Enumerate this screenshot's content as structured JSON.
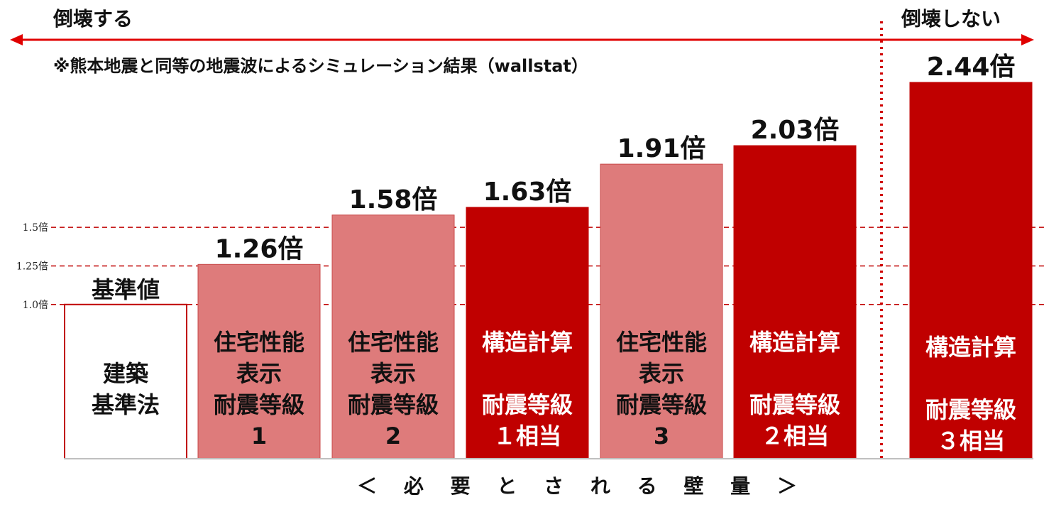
{
  "chart_data": {
    "type": "bar",
    "header_left": "倒壊する",
    "header_right": "倒壊しない",
    "note": "※熊本地震と同等の地震波によるシミュレーション結果（wallstat）",
    "xlabel": "＜ 必 要 と さ れ る 壁 量 ＞",
    "ylim": [
      0,
      2.44
    ],
    "reference_lines": [
      {
        "value": 1.5,
        "label": "1.5倍"
      },
      {
        "value": 1.25,
        "label": "1.25倍"
      },
      {
        "value": 1.0,
        "label": "1.0倍"
      }
    ],
    "bars": [
      {
        "value": 1.0,
        "value_label": "基準値",
        "category_lines": [
          "建築",
          "基準法"
        ],
        "style": "baseline"
      },
      {
        "value": 1.26,
        "value_label": "1.26倍",
        "category_lines": [
          "住宅性能",
          "表示",
          "耐震等級",
          "1"
        ],
        "style": "light"
      },
      {
        "value": 1.58,
        "value_label": "1.58倍",
        "category_lines": [
          "住宅性能",
          "表示",
          "耐震等級",
          "2"
        ],
        "style": "light"
      },
      {
        "value": 1.63,
        "value_label": "1.63倍",
        "category_lines": [
          "構造計算",
          "",
          "耐震等級",
          "１相当"
        ],
        "style": "dark"
      },
      {
        "value": 1.91,
        "value_label": "1.91倍",
        "category_lines": [
          "住宅性能",
          "表示",
          "耐震等級",
          "3"
        ],
        "style": "light"
      },
      {
        "value": 2.03,
        "value_label": "2.03倍",
        "category_lines": [
          "構造計算",
          "",
          "耐震等級",
          "２相当"
        ],
        "style": "dark"
      },
      {
        "value": 2.44,
        "value_label": "2.44倍",
        "category_lines": [
          "構造計算",
          "",
          "耐震等級",
          "３相当"
        ],
        "style": "dark"
      }
    ],
    "colors": {
      "dark": "#c00000",
      "light": "#de7b7b",
      "light_border": "#c84a4a",
      "baseline_border": "#c00000",
      "arrow": "#e00000",
      "ref_line": "#c00000"
    }
  }
}
